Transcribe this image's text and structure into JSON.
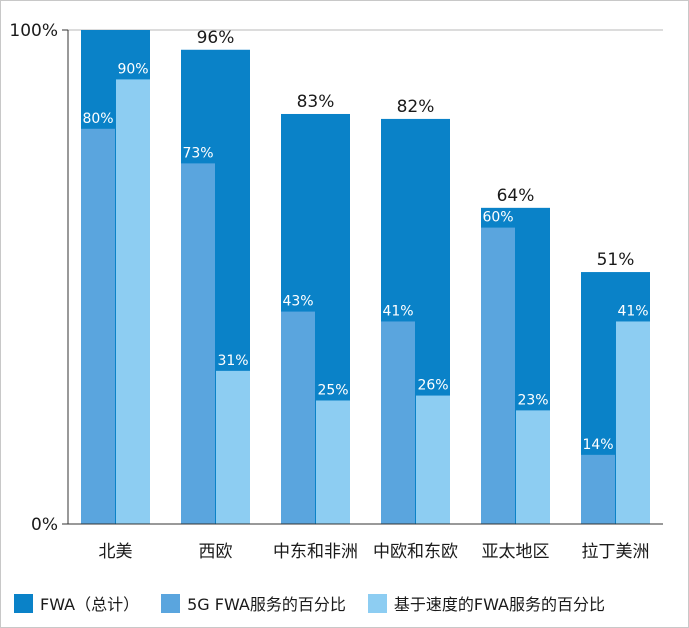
{
  "chart_data": {
    "type": "bar",
    "categories": [
      "北美",
      "西欧",
      "中东和非洲",
      "中欧和东欧",
      "亚太地区",
      "拉丁美洲"
    ],
    "series": [
      {
        "name": "FWA（总计）",
        "values": [
          100,
          96,
          83,
          82,
          64,
          51
        ],
        "labels": [
          "",
          "96%",
          "83%",
          "82%",
          "64%",
          "51%"
        ],
        "color": "#0a82c8"
      },
      {
        "name": "5G FWA服务的百分比",
        "values": [
          80,
          73,
          43,
          41,
          60,
          14
        ],
        "labels": [
          "80%",
          "73%",
          "43%",
          "41%",
          "60%",
          "14%"
        ],
        "color": "#5aa5de"
      },
      {
        "name": "基于速度的FWA服务的百分比",
        "values": [
          90,
          31,
          25,
          26,
          23,
          41
        ],
        "labels": [
          "90%",
          "31%",
          "25%",
          "26%",
          "23%",
          "41%"
        ],
        "color": "#8dcdf2"
      }
    ],
    "yticks": [
      "0%",
      "100%"
    ],
    "ylim": [
      0,
      100
    ],
    "legend_position": "bottom-left",
    "grid": true
  }
}
